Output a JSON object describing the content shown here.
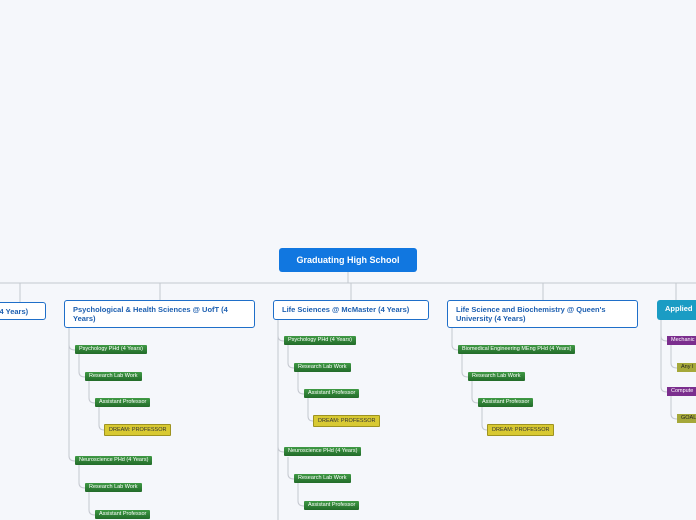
{
  "nodes": [
    "Graduating High School",
    "(4 Years)",
    "Psychological & Health Sciences @ UofT (4 Years)",
    "Life Sciences @ McMaster (4 Years)",
    "Life Science and Biochemistry @ Queen's University (4 Years)",
    "Applied",
    "Psychology PHd (4 Years)",
    "Research Lab Work",
    "Assistant Professor",
    "DREAM: PROFESSOR",
    "Neuroscience PHd (4 Years)",
    "Research Lab Work",
    "Assistant Professor",
    "Psychology PHd (4 Years)",
    "Research Lab Work",
    "Assistant Professor",
    "DREAM: PROFESSOR",
    "Neuroscience PHd (4 Years)",
    "Research Lab Work",
    "Assistant Professor",
    "Biomedical Engineering MEng PHd (4 Years)",
    "Research Lab Work",
    "Assistant Professor",
    "DREAM: PROFESSOR",
    "Mechanic",
    "Any I",
    "Compute",
    "GOAL"
  ]
}
